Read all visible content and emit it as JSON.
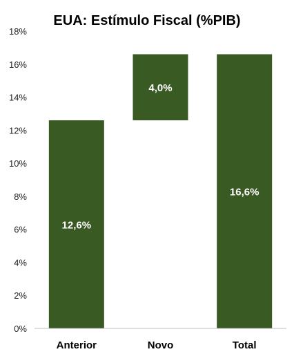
{
  "chart_data": {
    "type": "bar",
    "subtype": "waterfall",
    "title": "EUA: Estímulo Fiscal (%PIB)",
    "xlabel": "",
    "ylabel": "",
    "categories": [
      "Anterior",
      "Novo",
      "Total"
    ],
    "values": [
      12.6,
      4.0,
      16.6
    ],
    "bases": [
      0,
      12.6,
      0
    ],
    "data_labels": [
      "12,6%",
      "4,0%",
      "16,6%"
    ],
    "ylim": [
      0,
      18
    ],
    "yticks": [
      0,
      2,
      4,
      6,
      8,
      10,
      12,
      14,
      16,
      18
    ],
    "ytick_labels": [
      "0%",
      "2%",
      "4%",
      "6%",
      "8%",
      "10%",
      "12%",
      "14%",
      "16%",
      "18%"
    ],
    "grid": false,
    "legend": "none",
    "bar_color": "#3a5a23",
    "axis_color": "#bfbfbf"
  }
}
